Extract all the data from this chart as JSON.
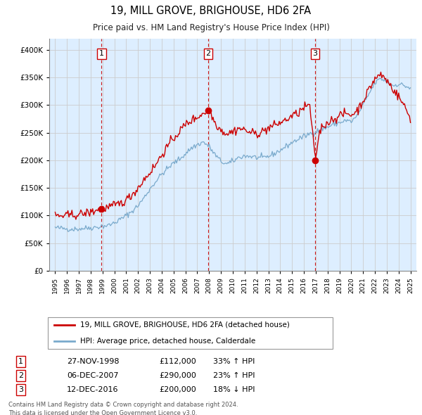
{
  "title": "19, MILL GROVE, BRIGHOUSE, HD6 2FA",
  "subtitle": "Price paid vs. HM Land Registry's House Price Index (HPI)",
  "hpi_label": "HPI: Average price, detached house, Calderdale",
  "property_label": "19, MILL GROVE, BRIGHOUSE, HD6 2FA (detached house)",
  "footer_line1": "Contains HM Land Registry data © Crown copyright and database right 2024.",
  "footer_line2": "This data is licensed under the Open Government Licence v3.0.",
  "transactions": [
    {
      "num": 1,
      "date": "27-NOV-1998",
      "price": 112000,
      "pct": "33%",
      "dir": "↑",
      "x": 1998.92
    },
    {
      "num": 2,
      "date": "06-DEC-2007",
      "price": 290000,
      "pct": "23%",
      "dir": "↑",
      "x": 2007.93
    },
    {
      "num": 3,
      "date": "12-DEC-2016",
      "price": 200000,
      "pct": "18%",
      "dir": "↓",
      "x": 2016.95
    }
  ],
  "property_color": "#cc0000",
  "hpi_color": "#7aaacc",
  "dashed_line_color": "#cc0000",
  "grid_color": "#cccccc",
  "chart_bg_color": "#ddeeff",
  "background_color": "#ffffff",
  "ylim": [
    0,
    420000
  ],
  "xlim": [
    1994.5,
    2025.5
  ],
  "yticks": [
    0,
    50000,
    100000,
    150000,
    200000,
    250000,
    300000,
    350000,
    400000
  ],
  "xticks": [
    1995,
    1996,
    1997,
    1998,
    1999,
    2000,
    2001,
    2002,
    2003,
    2004,
    2005,
    2006,
    2007,
    2008,
    2009,
    2010,
    2011,
    2012,
    2013,
    2014,
    2015,
    2016,
    2017,
    2018,
    2019,
    2020,
    2021,
    2022,
    2023,
    2024,
    2025
  ],
  "hpi_anchors_x": [
    1995.0,
    1995.5,
    1996.0,
    1996.5,
    1997.0,
    1997.5,
    1998.0,
    1998.5,
    1999.0,
    1999.5,
    2000.0,
    2000.5,
    2001.0,
    2001.5,
    2002.0,
    2002.5,
    2003.0,
    2003.5,
    2004.0,
    2004.5,
    2005.0,
    2005.5,
    2006.0,
    2006.5,
    2007.0,
    2007.5,
    2008.0,
    2008.5,
    2009.0,
    2009.5,
    2010.0,
    2010.5,
    2011.0,
    2011.5,
    2012.0,
    2012.5,
    2013.0,
    2013.5,
    2014.0,
    2014.5,
    2015.0,
    2015.5,
    2016.0,
    2016.5,
    2017.0,
    2017.5,
    2018.0,
    2018.5,
    2019.0,
    2019.5,
    2020.0,
    2020.5,
    2021.0,
    2021.5,
    2022.0,
    2022.5,
    2023.0,
    2023.5,
    2024.0,
    2024.5,
    2025.0
  ],
  "hpi_anchors_y": [
    78000,
    77000,
    76000,
    75500,
    76000,
    77000,
    78000,
    79000,
    81000,
    82000,
    87000,
    93000,
    100000,
    108000,
    118000,
    132000,
    148000,
    162000,
    175000,
    185000,
    195000,
    202000,
    212000,
    222000,
    228000,
    233000,
    225000,
    210000,
    198000,
    193000,
    198000,
    205000,
    208000,
    207000,
    205000,
    204000,
    207000,
    212000,
    218000,
    225000,
    232000,
    238000,
    243000,
    248000,
    252000,
    256000,
    260000,
    265000,
    268000,
    272000,
    270000,
    280000,
    300000,
    320000,
    340000,
    348000,
    342000,
    335000,
    338000,
    335000,
    330000
  ],
  "prop_anchors_x": [
    1995.0,
    1995.5,
    1996.0,
    1996.5,
    1997.0,
    1997.5,
    1998.0,
    1998.5,
    1998.92,
    1999.5,
    2000.0,
    2000.5,
    2001.0,
    2001.5,
    2002.0,
    2002.5,
    2003.0,
    2003.5,
    2004.0,
    2004.5,
    2005.0,
    2005.5,
    2006.0,
    2006.5,
    2007.0,
    2007.5,
    2007.93,
    2008.2,
    2008.5,
    2009.0,
    2009.5,
    2010.0,
    2010.5,
    2011.0,
    2011.5,
    2012.0,
    2012.5,
    2013.0,
    2013.5,
    2014.0,
    2014.5,
    2015.0,
    2015.5,
    2016.0,
    2016.5,
    2016.95,
    2017.3,
    2017.5,
    2018.0,
    2018.5,
    2019.0,
    2019.5,
    2020.0,
    2020.5,
    2021.0,
    2021.5,
    2022.0,
    2022.5,
    2023.0,
    2023.5,
    2024.0,
    2024.5,
    2025.0
  ],
  "prop_anchors_y": [
    100000,
    99000,
    100000,
    101000,
    102000,
    104000,
    106000,
    110000,
    112000,
    115000,
    118000,
    122000,
    128000,
    138000,
    150000,
    165000,
    178000,
    192000,
    210000,
    225000,
    240000,
    252000,
    265000,
    272000,
    278000,
    285000,
    290000,
    282000,
    268000,
    255000,
    248000,
    252000,
    258000,
    255000,
    250000,
    248000,
    252000,
    258000,
    263000,
    268000,
    273000,
    280000,
    285000,
    295000,
    300000,
    200000,
    248000,
    260000,
    268000,
    275000,
    280000,
    285000,
    282000,
    290000,
    308000,
    328000,
    348000,
    355000,
    345000,
    330000,
    315000,
    298000,
    275000
  ]
}
